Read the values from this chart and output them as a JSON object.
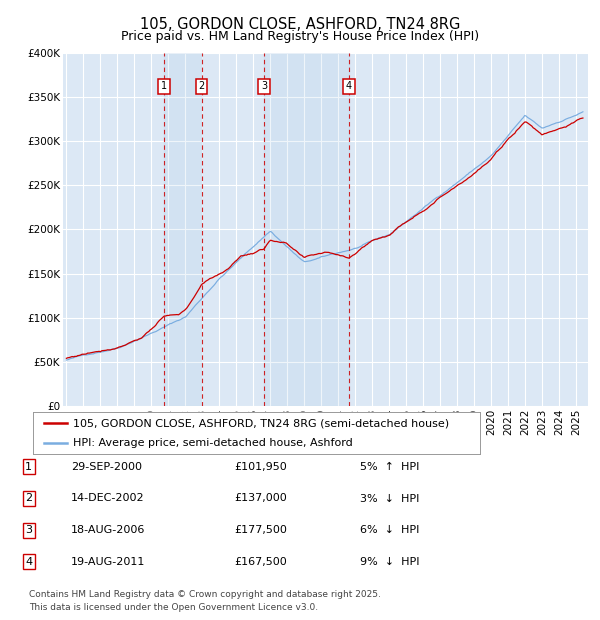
{
  "title": "105, GORDON CLOSE, ASHFORD, TN24 8RG",
  "subtitle": "Price paid vs. HM Land Registry's House Price Index (HPI)",
  "ylim": [
    0,
    400000
  ],
  "yticks": [
    0,
    50000,
    100000,
    150000,
    200000,
    250000,
    300000,
    350000,
    400000
  ],
  "ytick_labels": [
    "£0",
    "£50K",
    "£100K",
    "£150K",
    "£200K",
    "£250K",
    "£300K",
    "£350K",
    "£400K"
  ],
  "xlim_start": 1994.8,
  "xlim_end": 2025.7,
  "background_color": "#ffffff",
  "plot_bg_color": "#dce8f5",
  "grid_color": "#ffffff",
  "red_line_color": "#cc0000",
  "blue_line_color": "#7aade0",
  "transactions": [
    {
      "num": 1,
      "date": "29-SEP-2000",
      "price": 101950,
      "pct": "5%",
      "dir": "↑",
      "x_year": 2000.75
    },
    {
      "num": 2,
      "date": "14-DEC-2002",
      "price": 137000,
      "pct": "3%",
      "dir": "↓",
      "x_year": 2002.96
    },
    {
      "num": 3,
      "date": "18-AUG-2006",
      "price": 177500,
      "pct": "6%",
      "dir": "↓",
      "x_year": 2006.63
    },
    {
      "num": 4,
      "date": "19-AUG-2011",
      "price": 167500,
      "pct": "9%",
      "dir": "↓",
      "x_year": 2011.63
    }
  ],
  "legend_line1": "105, GORDON CLOSE, ASHFORD, TN24 8RG (semi-detached house)",
  "legend_line2": "HPI: Average price, semi-detached house, Ashford",
  "footer": "Contains HM Land Registry data © Crown copyright and database right 2025.\nThis data is licensed under the Open Government Licence v3.0.",
  "title_fontsize": 10.5,
  "subtitle_fontsize": 9,
  "tick_fontsize": 7.5,
  "legend_fontsize": 8,
  "table_fontsize": 8,
  "footer_fontsize": 6.5,
  "marker_y": 362000,
  "shade_alpha": 0.18
}
